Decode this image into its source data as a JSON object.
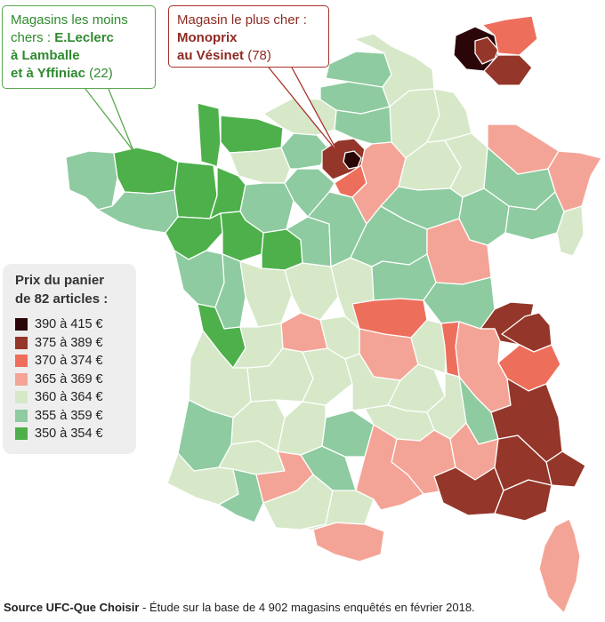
{
  "callouts": {
    "cheapest": {
      "prefix": "Magasins les moins chers : ",
      "store1": "E.Leclerc",
      "store2": "à Lamballe",
      "store3": "et à Yffiniac",
      "value": " (22)"
    },
    "most_expensive": {
      "prefix": "Magasin le plus cher :",
      "store1": "Monoprix",
      "store2": "au Vésinet",
      "value": " (78)"
    }
  },
  "legend": {
    "title1": "Prix du panier",
    "title2": "de 82 articles :",
    "classes": [
      {
        "label": "390 à 415 €",
        "color": "#2a0608"
      },
      {
        "label": "375 à 389 €",
        "color": "#943629"
      },
      {
        "label": "370 à 374 €",
        "color": "#ee6e5c"
      },
      {
        "label": "365 à 369 €",
        "color": "#f4a496"
      },
      {
        "label": "360 à 364 €",
        "color": "#d6e8c8"
      },
      {
        "label": "355 à 359 €",
        "color": "#8ecba0"
      },
      {
        "label": "350 à 354 €",
        "color": "#4db04a"
      }
    ]
  },
  "source": {
    "bold": "Source UFC-Que Choisir",
    "rest": " - Étude sur la base de 4 902 magasins enquêtés en février 2018."
  },
  "map": {
    "regions": [
      {
        "name": "finistere",
        "cls": 5
      },
      {
        "name": "cotes-darmor",
        "cls": 6
      },
      {
        "name": "morbihan",
        "cls": 5
      },
      {
        "name": "ille-et-vilaine",
        "cls": 6
      },
      {
        "name": "manche",
        "cls": 6
      },
      {
        "name": "calvados",
        "cls": 6
      },
      {
        "name": "orne",
        "cls": 4
      },
      {
        "name": "mayenne",
        "cls": 6
      },
      {
        "name": "sarthe",
        "cls": 5
      },
      {
        "name": "loire-atlantique",
        "cls": 6
      },
      {
        "name": "maine-et-loire",
        "cls": 6
      },
      {
        "name": "vendee",
        "cls": 5
      },
      {
        "name": "indre-et-loire",
        "cls": 6
      },
      {
        "name": "deux-sevres",
        "cls": 5
      },
      {
        "name": "vienne",
        "cls": 4
      },
      {
        "name": "charente-maritime",
        "cls": 6
      },
      {
        "name": "charente",
        "cls": 4
      },
      {
        "name": "gironde",
        "cls": 4
      },
      {
        "name": "landes",
        "cls": 5
      },
      {
        "name": "pyrenees-atlantiques",
        "cls": 4
      },
      {
        "name": "hautes-pyrenees",
        "cls": 5
      },
      {
        "name": "gers",
        "cls": 4
      },
      {
        "name": "lot-et-garonne",
        "cls": 4
      },
      {
        "name": "dordogne",
        "cls": 4
      },
      {
        "name": "haute-garonne",
        "cls": 3
      },
      {
        "name": "ariege",
        "cls": 4
      },
      {
        "name": "pyrenees-orientales",
        "cls": 3
      },
      {
        "name": "aude",
        "cls": 4
      },
      {
        "name": "tarn",
        "cls": 5
      },
      {
        "name": "aveyron",
        "cls": 5
      },
      {
        "name": "lot",
        "cls": 4
      },
      {
        "name": "correze",
        "cls": 4
      },
      {
        "name": "haute-vienne",
        "cls": 3
      },
      {
        "name": "creuse",
        "cls": 4
      },
      {
        "name": "indre",
        "cls": 4
      },
      {
        "name": "cher",
        "cls": 4
      },
      {
        "name": "loir-et-cher",
        "cls": 5
      },
      {
        "name": "loiret",
        "cls": 5
      },
      {
        "name": "eure-et-loir",
        "cls": 5
      },
      {
        "name": "eure",
        "cls": 5
      },
      {
        "name": "seine-maritime",
        "cls": 4
      },
      {
        "name": "somme",
        "cls": 5
      },
      {
        "name": "pas-de-calais",
        "cls": 5
      },
      {
        "name": "nord",
        "cls": 4
      },
      {
        "name": "aisne",
        "cls": 4
      },
      {
        "name": "oise",
        "cls": 5
      },
      {
        "name": "yvelines",
        "cls": 1
      },
      {
        "name": "paris-area",
        "cls": 0
      },
      {
        "name": "essonne",
        "cls": 2
      },
      {
        "name": "seine-et-marne",
        "cls": 3
      },
      {
        "name": "marne",
        "cls": 4
      },
      {
        "name": "ardennes",
        "cls": 4
      },
      {
        "name": "meuse",
        "cls": 4
      },
      {
        "name": "moselle",
        "cls": 3
      },
      {
        "name": "bas-rhin",
        "cls": 3
      },
      {
        "name": "meurthe-et-moselle",
        "cls": 5
      },
      {
        "name": "vosges",
        "cls": 5
      },
      {
        "name": "haut-rhin",
        "cls": 4
      },
      {
        "name": "aube",
        "cls": 5
      },
      {
        "name": "haute-marne",
        "cls": 5
      },
      {
        "name": "yonne",
        "cls": 5
      },
      {
        "name": "cote-dor",
        "cls": 3
      },
      {
        "name": "nievre",
        "cls": 5
      },
      {
        "name": "saone-et-loire",
        "cls": 5
      },
      {
        "name": "allier",
        "cls": 2
      },
      {
        "name": "puy-de-dome",
        "cls": 3
      },
      {
        "name": "cantal",
        "cls": 4
      },
      {
        "name": "haute-loire",
        "cls": 4
      },
      {
        "name": "loire",
        "cls": 4
      },
      {
        "name": "ain",
        "cls": 1
      },
      {
        "name": "haute-savoie",
        "cls": 1
      },
      {
        "name": "savoie",
        "cls": 2
      },
      {
        "name": "isere",
        "cls": 3
      },
      {
        "name": "rhone",
        "cls": 2
      },
      {
        "name": "ardeche",
        "cls": 4
      },
      {
        "name": "drome",
        "cls": 5
      },
      {
        "name": "lozere",
        "cls": 4
      },
      {
        "name": "gard",
        "cls": 3
      },
      {
        "name": "herault",
        "cls": 3
      },
      {
        "name": "vaucluse",
        "cls": 3
      },
      {
        "name": "bouches-du-rhone",
        "cls": 1
      },
      {
        "name": "var",
        "cls": 1
      },
      {
        "name": "alpes-maritimes",
        "cls": 1
      },
      {
        "name": "alpes-haute-provence",
        "cls": 1
      },
      {
        "name": "hautes-alpes",
        "cls": 1
      },
      {
        "name": "corse",
        "cls": 3
      }
    ],
    "inset_regions": [
      {
        "name": "inset-paris",
        "cls": 0
      },
      {
        "name": "inset-hauts-de-seine",
        "cls": 1
      },
      {
        "name": "inset-seine-saint-denis",
        "cls": 2
      },
      {
        "name": "inset-val-de-marne",
        "cls": 1
      }
    ]
  }
}
